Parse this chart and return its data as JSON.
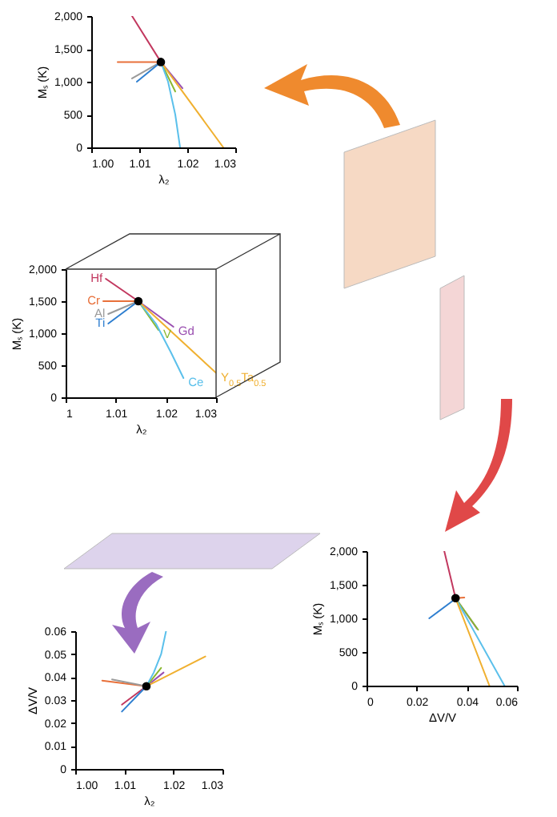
{
  "chart_data": [
    {
      "type": "line",
      "xlabel": "λ₂",
      "ylabel": "Mₛ (K)",
      "xlim": [
        1.0,
        1.03
      ],
      "xticks": [
        {
          "value": 1.0,
          "label": "1.00"
        },
        {
          "value": 1.01,
          "label": "1.01"
        },
        {
          "value": 1.02,
          "label": "1.02"
        },
        {
          "value": 1.03,
          "label": "1.03"
        }
      ],
      "ylim": [
        0,
        2000
      ],
      "yticks": [
        0,
        500,
        {
          "value": 1000,
          "label": "1,000"
        },
        {
          "value": 1500,
          "label": "1,500"
        },
        {
          "value": 2000,
          "label": "2,000"
        }
      ],
      "legend": false,
      "series": [
        {
          "color": "#c2385f",
          "x": [
            1.0085,
            1.0145
          ],
          "values": [
            2000,
            1300
          ]
        },
        {
          "color": "#e8703a",
          "x": [
            1.0055,
            1.0145
          ],
          "values": [
            1300,
            1300
          ]
        },
        {
          "color": "#9a9a9a",
          "x": [
            1.0085,
            1.0145
          ],
          "values": [
            1050,
            1300
          ]
        },
        {
          "color": "#2f7fd0",
          "x": [
            1.0095,
            1.0145
          ],
          "values": [
            1000,
            1300
          ]
        },
        {
          "color": "#9a4fb0",
          "x": [
            1.019,
            1.0145
          ],
          "values": [
            900,
            1300
          ]
        },
        {
          "color": "#8ab830",
          "x": [
            1.0175,
            1.0145
          ],
          "values": [
            850,
            1300
          ]
        },
        {
          "color": "#5bc0eb",
          "x": [
            1.0185,
            1.0175,
            1.016,
            1.0145
          ],
          "values": [
            0,
            500,
            1000,
            1300
          ]
        },
        {
          "color": "#f0b030",
          "x": [
            1.0275,
            1.0145
          ],
          "values": [
            0,
            1300
          ]
        },
        {
          "type": "scatter",
          "marker": "circle",
          "color": "#000000",
          "x": [
            1.0145
          ],
          "values": [
            1300
          ]
        }
      ]
    },
    {
      "type": "line",
      "xlabel": "λ₂",
      "ylabel": "Mₛ (K)",
      "xlim": [
        1.0,
        1.03
      ],
      "xticks": [
        1,
        1.01,
        1.02,
        1.03
      ],
      "ylim": [
        0,
        2000
      ],
      "yticks": [
        0,
        500,
        {
          "value": 1000,
          "label": "1,000"
        },
        {
          "value": 1500,
          "label": "1,500"
        },
        {
          "value": 2000,
          "label": "2,000"
        }
      ],
      "legend": false,
      "series": [
        {
          "name": "Hf",
          "color": "#c2385f",
          "x": [
            1.008,
            1.0145
          ],
          "values": [
            1850,
            1500
          ]
        },
        {
          "name": "Cr",
          "color": "#e8703a",
          "x": [
            1.0075,
            1.0145
          ],
          "values": [
            1500,
            1500
          ]
        },
        {
          "name": "Al",
          "color": "#9a9a9a",
          "x": [
            1.0085,
            1.0145
          ],
          "values": [
            1300,
            1500
          ]
        },
        {
          "name": "Ti",
          "color": "#2f7fd0",
          "x": [
            1.0085,
            1.0145
          ],
          "values": [
            1150,
            1500
          ]
        },
        {
          "name": "Gd",
          "color": "#9a4fb0",
          "x": [
            1.0215,
            1.0145
          ],
          "values": [
            1100,
            1500
          ]
        },
        {
          "name": "V",
          "color": "#8ab830",
          "x": [
            1.0185,
            1.0145
          ],
          "values": [
            1050,
            1500
          ]
        },
        {
          "name": "Ce",
          "color": "#5bc0eb",
          "x": [
            1.0235,
            1.021,
            1.018,
            1.0145
          ],
          "values": [
            300,
            700,
            1150,
            1500
          ]
        },
        {
          "name": "Y$_{0.5}$Ta$_{0.5}$",
          "color": "#f0b030",
          "x": [
            1.03,
            1.0145
          ],
          "values": [
            380,
            1500
          ]
        },
        {
          "type": "scatter",
          "marker": "circle",
          "color": "#000000",
          "x": [
            1.0145
          ],
          "values": [
            1500
          ]
        }
      ]
    },
    {
      "type": "line",
      "xlabel": "ΔV/V",
      "ylabel": "Mₛ (K)",
      "xlim": [
        0,
        0.06
      ],
      "xticks": [
        0,
        0.02,
        0.04,
        0.06
      ],
      "ylim": [
        0,
        2000
      ],
      "yticks": [
        0,
        500,
        {
          "value": 1000,
          "label": "1,000"
        },
        {
          "value": 1500,
          "label": "1,500"
        },
        {
          "value": 2000,
          "label": "2,000"
        }
      ],
      "legend": false,
      "series": [
        {
          "color": "#c2385f",
          "x": [
            0.031,
            0.0355
          ],
          "values": [
            2000,
            1300
          ]
        },
        {
          "color": "#e8703a",
          "x": [
            0.039,
            0.0355
          ],
          "values": [
            1310,
            1300
          ]
        },
        {
          "color": "#2f7fd0",
          "x": [
            0.025,
            0.034,
            0.0355
          ],
          "values": [
            1000,
            1250,
            1300
          ]
        },
        {
          "color": "#9a4fb0",
          "x": [
            0.044,
            0.0355
          ],
          "values": [
            850,
            1300
          ]
        },
        {
          "color": "#8ab830",
          "x": [
            0.0445,
            0.0355
          ],
          "values": [
            830,
            1300
          ]
        },
        {
          "color": "#5bc0eb",
          "x": [
            0.055,
            0.0355
          ],
          "values": [
            0,
            1300
          ]
        },
        {
          "color": "#f0b030",
          "x": [
            0.049,
            0.0355
          ],
          "values": [
            0,
            1300
          ]
        },
        {
          "type": "scatter",
          "marker": "circle",
          "color": "#000000",
          "x": [
            0.0355
          ],
          "values": [
            1300
          ]
        }
      ]
    },
    {
      "type": "line",
      "xlabel": "λ₂",
      "ylabel": "ΔV/V",
      "xlim": [
        1.0,
        1.03
      ],
      "xticks": [
        {
          "value": 1.0,
          "label": "1.00"
        },
        {
          "value": 1.01,
          "label": "1.01"
        },
        {
          "value": 1.02,
          "label": "1.02"
        },
        {
          "value": 1.03,
          "label": "1.03"
        }
      ],
      "ylim": [
        0,
        0.06
      ],
      "yticks": [
        0,
        0.01,
        0.02,
        0.03,
        0.04,
        0.05,
        0.06
      ],
      "legend": false,
      "series": [
        {
          "color": "#c2385f",
          "x": [
            1.0095,
            1.0145
          ],
          "values": [
            0.028,
            0.036
          ]
        },
        {
          "color": "#e8703a",
          "x": [
            1.0055,
            1.0145
          ],
          "values": [
            0.0385,
            0.036
          ]
        },
        {
          "color": "#9a9a9a",
          "x": [
            1.0075,
            1.0145
          ],
          "values": [
            0.039,
            0.036
          ]
        },
        {
          "color": "#2f7fd0",
          "x": [
            1.0095,
            1.0145
          ],
          "values": [
            0.025,
            0.036
          ]
        },
        {
          "color": "#9a4fb0",
          "x": [
            1.018,
            1.0145
          ],
          "values": [
            0.042,
            0.036
          ]
        },
        {
          "color": "#8ab830",
          "x": [
            1.0175,
            1.0145
          ],
          "values": [
            0.044,
            0.036
          ]
        },
        {
          "color": "#5bc0eb",
          "x": [
            1.0185,
            1.0175,
            1.016,
            1.0145
          ],
          "values": [
            0.06,
            0.05,
            0.042,
            0.036
          ]
        },
        {
          "color": "#f0b030",
          "x": [
            1.0265,
            1.0145
          ],
          "values": [
            0.049,
            0.036
          ]
        },
        {
          "type": "scatter",
          "marker": "circle",
          "color": "#000000",
          "x": [
            1.0145
          ],
          "values": [
            0.036
          ]
        }
      ]
    }
  ]
}
